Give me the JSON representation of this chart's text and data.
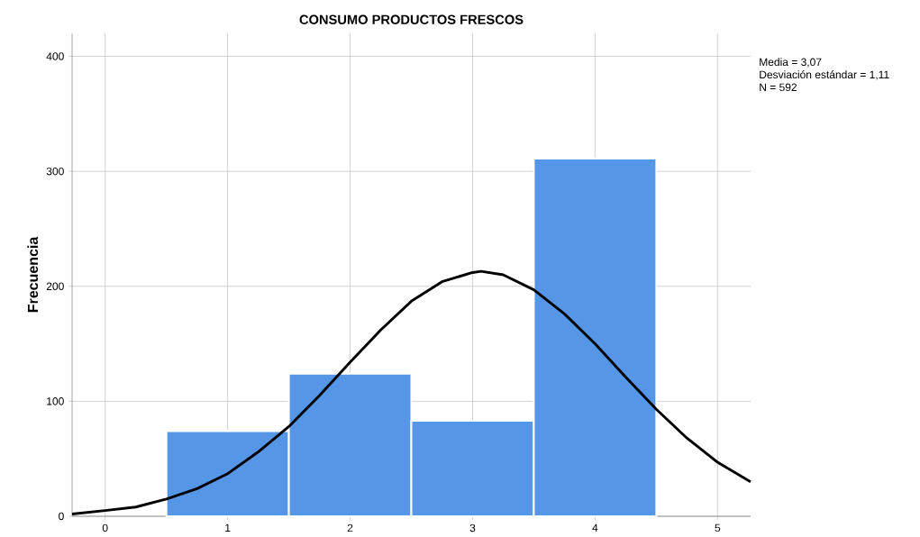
{
  "chart_data": {
    "type": "histogram",
    "title": "CONSUMO PRODUCTOS FRESCOS",
    "ylabel": "Frecuencia",
    "annotations": [
      "Media = 3,07",
      "Desviación estándar = 1,11",
      "N = 592"
    ],
    "series": [
      {
        "color": "#5596e6",
        "bins": [
          0.5,
          1.5,
          2.5,
          3.5,
          4.5
        ],
        "values": [
          74,
          124,
          83,
          311
        ]
      },
      {
        "type": "line",
        "color": "#000000",
        "x": [
          -0.27,
          0,
          0.25,
          0.5,
          0.75,
          1,
          1.25,
          1.5,
          1.75,
          2,
          2.25,
          2.5,
          2.75,
          3,
          3.07,
          3.25,
          3.5,
          3.75,
          4,
          4.25,
          4.5,
          4.75,
          5,
          5.27
        ],
        "values": [
          2,
          5,
          8,
          15,
          24,
          37,
          56,
          78,
          105,
          134,
          162,
          187,
          204,
          212,
          213,
          210,
          197,
          176,
          150,
          121,
          93,
          68,
          47,
          30
        ]
      }
    ],
    "xlim": [
      -0.27,
      5.27
    ],
    "ylim": [
      0,
      420
    ],
    "xticks": [
      0,
      1,
      2,
      3,
      4,
      5
    ],
    "yticks": [
      0,
      100,
      200,
      300,
      400
    ],
    "grid": true
  }
}
